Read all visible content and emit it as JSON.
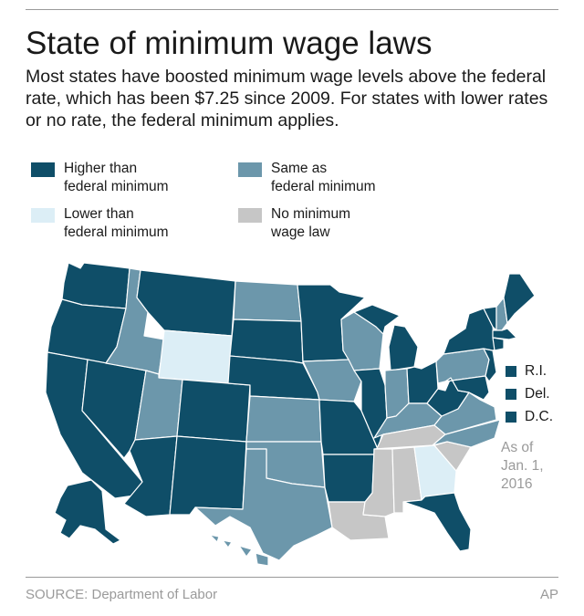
{
  "title": "State of minimum wage laws",
  "subtitle": "Most states have boosted minimum wage levels above the federal rate, which has been $7.25 since 2009. For states with lower rates or no rate, the federal minimum applies.",
  "colors": {
    "higher": "#0f4e68",
    "same": "#6c97ab",
    "lower": "#dceef6",
    "none": "#c6c6c6",
    "border": "#ffffff"
  },
  "legend": [
    {
      "key": "higher",
      "label": "Higher than\nfederal minimum"
    },
    {
      "key": "same",
      "label": "Same as\nfederal minimum"
    },
    {
      "key": "lower",
      "label": "Lower than\nfederal minimum"
    },
    {
      "key": "none",
      "label": "No minimum\nwage law"
    }
  ],
  "small_states": [
    {
      "label": "R.I.",
      "category": "higher"
    },
    {
      "label": "Del.",
      "category": "higher"
    },
    {
      "label": "D.C.",
      "category": "higher"
    }
  ],
  "as_of": "As of\nJan. 1,\n2016",
  "source": "SOURCE: Department of Labor",
  "credit": "AP",
  "states": {
    "WA": "higher",
    "OR": "higher",
    "CA": "higher",
    "NV": "higher",
    "AZ": "higher",
    "MT": "higher",
    "CO": "higher",
    "NM": "higher",
    "SD": "higher",
    "NE": "higher",
    "MN": "higher",
    "MO": "higher",
    "AR": "higher",
    "IL": "higher",
    "MI": "higher",
    "OH": "higher",
    "WV": "higher",
    "FL": "higher",
    "NY": "higher",
    "VT": "higher",
    "ME": "higher",
    "MA": "higher",
    "CT": "higher",
    "NJ": "higher",
    "MD": "higher",
    "AK": "higher",
    "ID": "same",
    "UT": "same",
    "ND": "same",
    "KS": "same",
    "OK": "same",
    "TX": "same",
    "IA": "same",
    "WI": "same",
    "IN": "same",
    "KY": "same",
    "VA": "same",
    "NC": "same",
    "PA": "same",
    "NH": "same",
    "HI": "same",
    "WY": "lower",
    "GA": "lower",
    "TN": "none",
    "MS": "none",
    "AL": "none",
    "LA": "none",
    "SC": "none"
  }
}
